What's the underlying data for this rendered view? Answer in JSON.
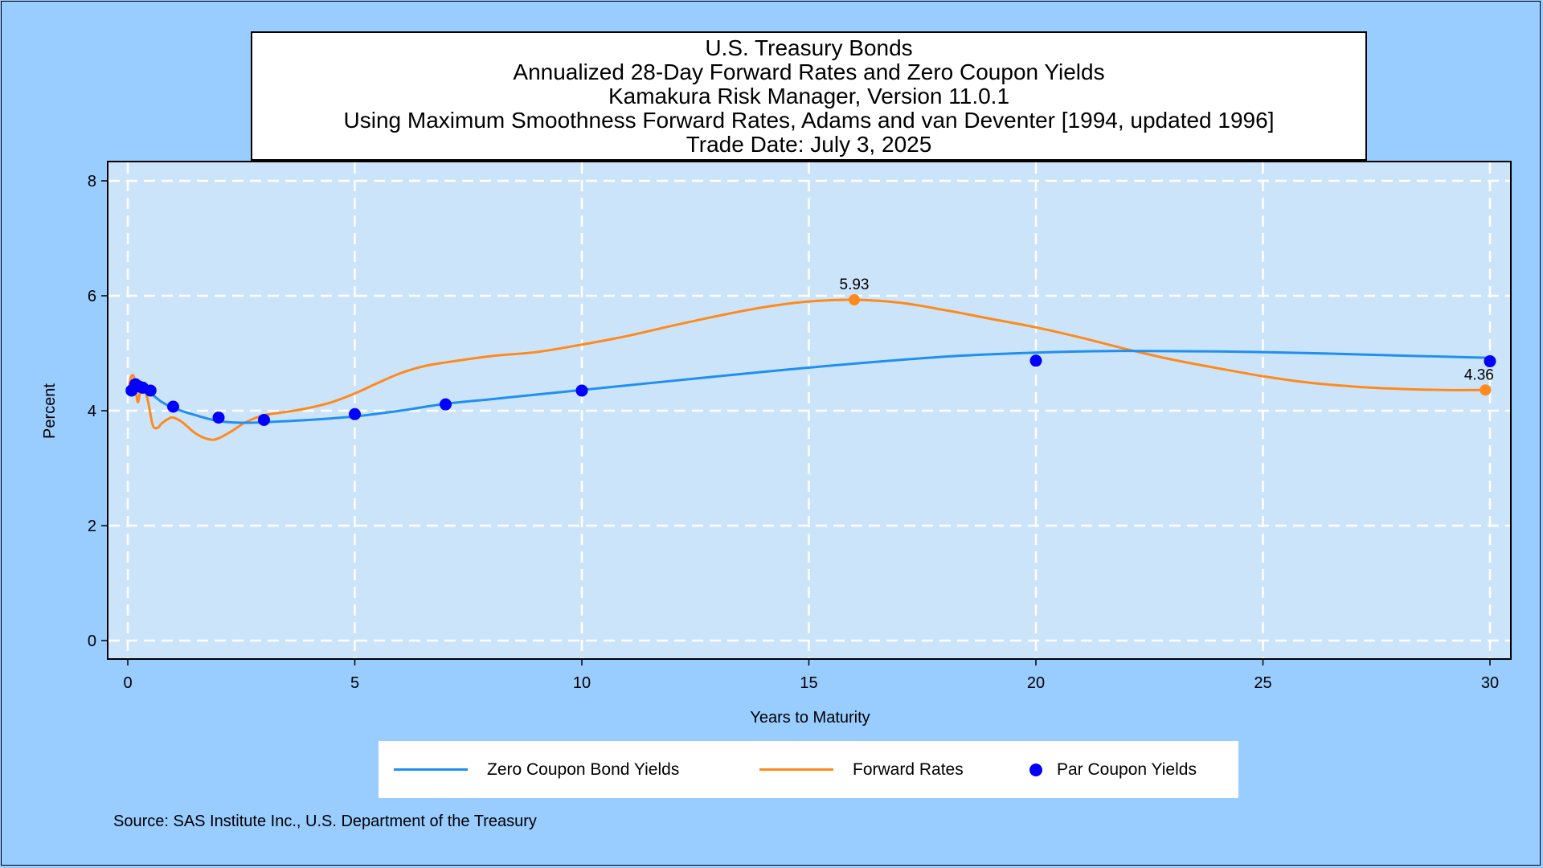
{
  "title_lines": [
    "U.S. Treasury Bonds",
    "Annualized 28-Day Forward Rates and Zero Coupon Yields",
    "Kamakura Risk Manager, Version 11.0.1",
    "Using Maximum Smoothness Forward Rates, Adams and van Deventer [1994, updated 1996]",
    "Trade Date: July 3, 2025"
  ],
  "source_note": "Source: SAS Institute Inc., U.S. Department of the Treasury",
  "colors": {
    "background": "#99ccff",
    "plot_area": "#cce4fa",
    "zero_coupon": "#1f8ff0",
    "forward": "#ff8a1c",
    "par": "#0000ff"
  },
  "chart_data": {
    "type": "line",
    "xlabel": "Years to Maturity",
    "ylabel": "Percent",
    "xlim": [
      0,
      30
    ],
    "ylim": [
      0,
      8
    ],
    "xticks": [
      0,
      5,
      10,
      15,
      20,
      25,
      30
    ],
    "yticks": [
      0,
      2,
      4,
      6,
      8
    ],
    "grid": true,
    "legend_position": "bottom",
    "series": [
      {
        "name": "Zero Coupon Bond Yields",
        "kind": "line",
        "x": [
          0,
          0.1,
          0.25,
          0.5,
          0.75,
          1,
          1.5,
          2,
          2.5,
          3,
          4,
          5,
          6,
          7,
          8,
          10,
          12,
          15,
          18,
          20,
          22,
          25,
          28,
          30
        ],
        "y": [
          4.35,
          4.4,
          4.38,
          4.3,
          4.15,
          4.05,
          3.92,
          3.82,
          3.79,
          3.8,
          3.84,
          3.9,
          4.0,
          4.12,
          4.2,
          4.36,
          4.52,
          4.75,
          4.94,
          5.01,
          5.04,
          5.02,
          4.96,
          4.92
        ]
      },
      {
        "name": "Forward Rates",
        "kind": "line",
        "x": [
          0,
          0.08,
          0.15,
          0.22,
          0.3,
          0.38,
          0.45,
          0.55,
          0.65,
          0.75,
          0.9,
          1.0,
          1.2,
          1.5,
          1.8,
          2.0,
          2.3,
          2.6,
          3.0,
          3.5,
          4.0,
          4.5,
          5.0,
          5.5,
          6.0,
          6.5,
          7.0,
          8.0,
          9.0,
          10.0,
          11.0,
          12.0,
          13.0,
          14.0,
          15.0,
          16.0,
          17.0,
          18.0,
          19.0,
          20.0,
          21.0,
          22.0,
          23.0,
          24.0,
          25.0,
          26.0,
          27.0,
          28.0,
          29.0,
          30.0
        ],
        "y": [
          4.33,
          4.6,
          4.55,
          4.15,
          4.45,
          4.35,
          4.15,
          3.75,
          3.7,
          3.78,
          3.86,
          3.88,
          3.8,
          3.6,
          3.5,
          3.52,
          3.65,
          3.8,
          3.92,
          3.98,
          4.05,
          4.15,
          4.3,
          4.48,
          4.65,
          4.77,
          4.84,
          4.95,
          5.02,
          5.15,
          5.3,
          5.48,
          5.65,
          5.8,
          5.9,
          5.93,
          5.88,
          5.75,
          5.6,
          5.45,
          5.27,
          5.07,
          4.89,
          4.74,
          4.6,
          4.49,
          4.42,
          4.38,
          4.36,
          4.36
        ]
      },
      {
        "name": "Par Coupon Yields",
        "kind": "scatter",
        "x": [
          0.083,
          0.167,
          0.25,
          0.33,
          0.5,
          1,
          2,
          3,
          5,
          7,
          10,
          20,
          30
        ],
        "y": [
          4.35,
          4.46,
          4.42,
          4.4,
          4.35,
          4.07,
          3.88,
          3.84,
          3.94,
          4.11,
          4.35,
          4.87,
          4.86
        ]
      }
    ],
    "annotations": [
      {
        "series": "Forward Rates",
        "x": 16,
        "y": 5.93,
        "text": "5.93"
      },
      {
        "series": "Forward Rates",
        "x": 29.9,
        "y": 4.36,
        "text": "4.36"
      }
    ]
  }
}
